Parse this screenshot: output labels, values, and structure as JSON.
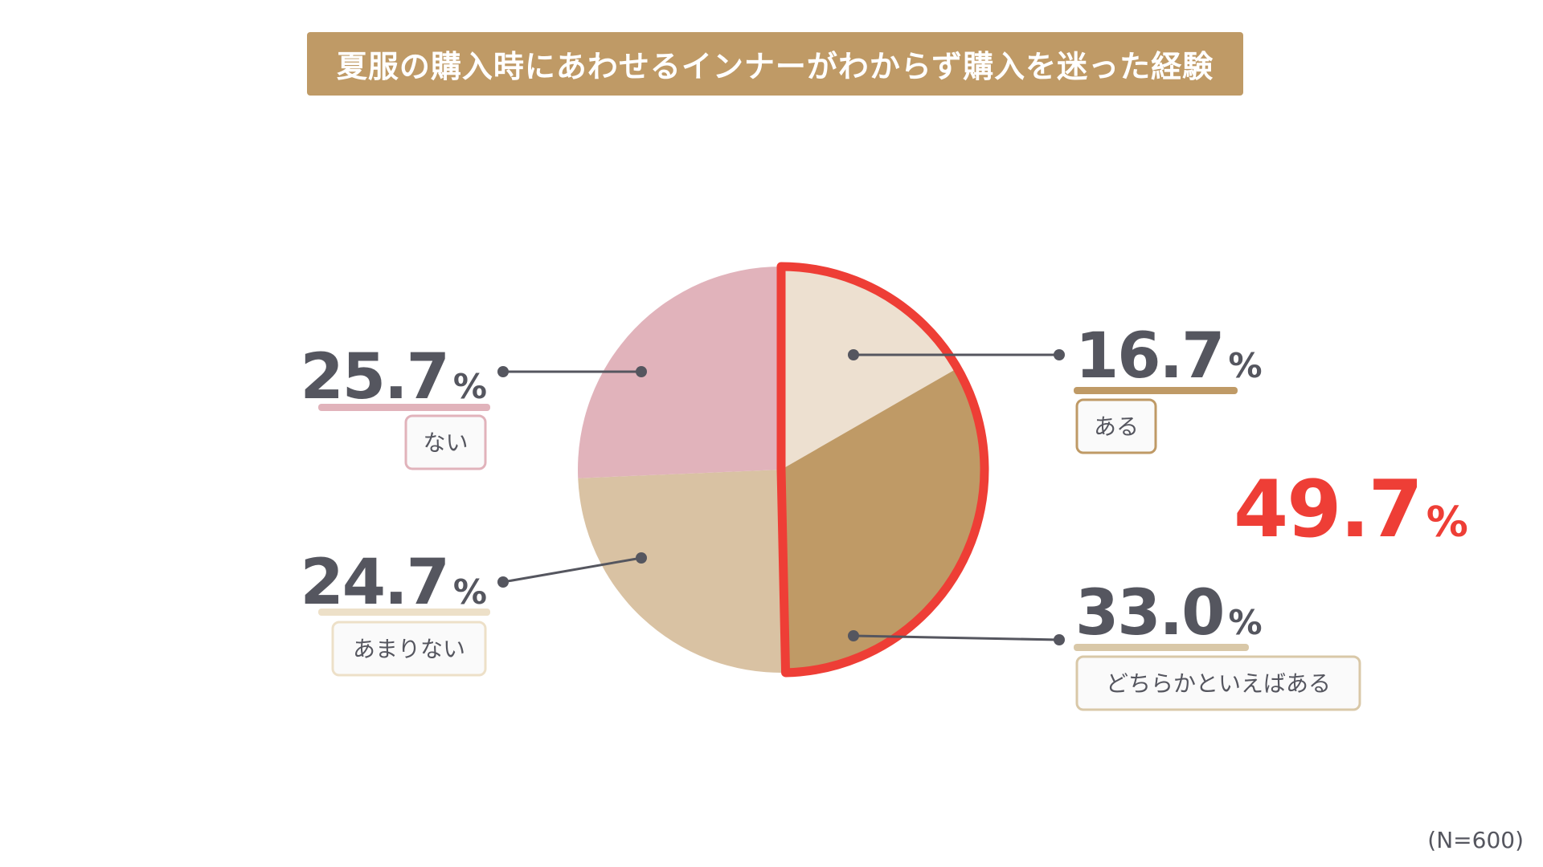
{
  "chart_data": {
    "type": "pie",
    "title": "夏服の購入時にあわせるインナーがわからず購入を迷った経験",
    "categories": [
      "ある",
      "どちらかといえばある",
      "あまりない",
      "ない"
    ],
    "values": [
      16.7,
      33.0,
      24.7,
      25.7
    ],
    "value_labels": [
      "16.7",
      "33.0",
      "24.7",
      "25.7"
    ],
    "unit": "%",
    "highlight": {
      "categories": [
        "ある",
        "どちらかといえばある"
      ],
      "total_label": "49.7",
      "unit": "%",
      "color": "#ee3e36"
    },
    "colors": [
      "#ede0d0",
      "#bf9a66",
      "#d9c2a3",
      "#e1b3bb"
    ],
    "label_colors": [
      "#bf9a66",
      "#d9c8a8",
      "#ede0c8",
      "#e1b3bb"
    ],
    "note": "(N=600)"
  },
  "theme": {
    "title_bg": "#bf9a66",
    "text_color": "#55565f",
    "leader_color": "#55565f"
  }
}
